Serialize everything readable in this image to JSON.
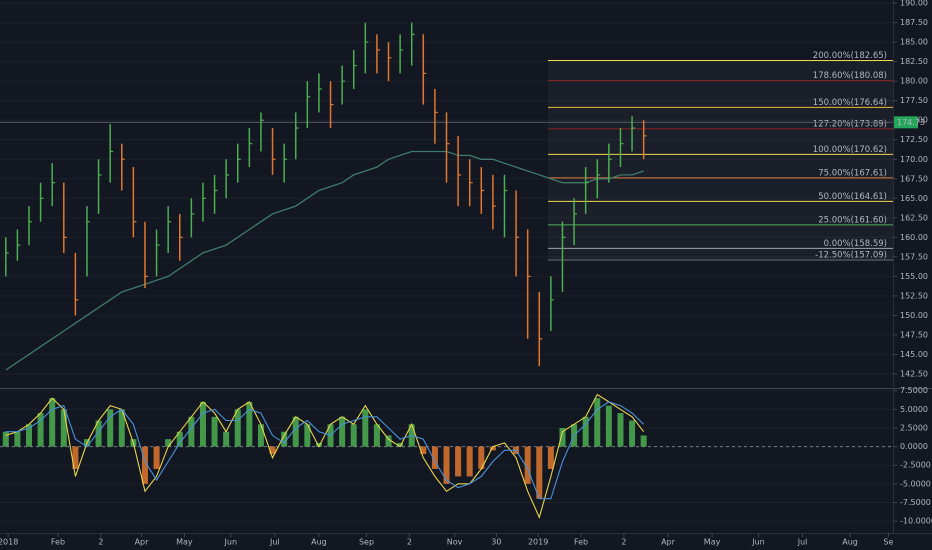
{
  "chart_data": [
    {
      "type": "ohlc",
      "x": [
        0,
        1,
        2,
        3,
        4,
        5,
        6,
        7,
        8,
        9,
        10,
        11,
        12,
        13,
        14,
        15,
        16,
        17,
        18,
        19,
        20,
        21,
        22,
        23,
        24,
        25,
        26,
        27,
        28,
        29,
        30,
        31,
        32,
        33,
        34,
        35,
        36,
        37,
        38,
        39,
        40,
        41,
        42,
        43,
        44,
        45,
        46,
        47,
        48,
        49,
        50,
        51,
        52,
        53,
        54,
        55
      ],
      "xlim": [
        0,
        77
      ],
      "ylim": [
        140.7,
        190.4
      ],
      "high": [
        160,
        161,
        164,
        167,
        169.5,
        167,
        158,
        164,
        170,
        174.5,
        172,
        169,
        162,
        161,
        164,
        163,
        165,
        167,
        168,
        170,
        172,
        174,
        176,
        174,
        172,
        176,
        180,
        181,
        180,
        182,
        184,
        187.5,
        186,
        185,
        186,
        187.5,
        186,
        179,
        176,
        173,
        170,
        169,
        168,
        168,
        166,
        161,
        153,
        155,
        162,
        165,
        169,
        170,
        172,
        174,
        175.5,
        175
      ],
      "low": [
        155,
        157,
        159,
        162,
        164,
        158,
        150,
        155,
        163,
        167,
        166,
        160,
        153.5,
        155,
        158,
        157,
        160,
        162,
        163,
        165,
        167,
        169,
        171,
        168,
        167,
        170,
        174,
        176,
        174,
        177,
        179,
        181,
        181,
        180,
        181,
        182,
        177,
        172,
        167,
        164,
        164,
        163,
        161,
        160,
        155,
        147,
        143.5,
        148,
        153,
        159,
        163,
        165,
        167,
        169,
        171,
        170
      ],
      "close": [
        158,
        159,
        162,
        165,
        167,
        160,
        152,
        162,
        168,
        171,
        170,
        162,
        155,
        159,
        162,
        160,
        163,
        165,
        166,
        168,
        170,
        172,
        175,
        170,
        170,
        174,
        178,
        179,
        177,
        180,
        182,
        185,
        184,
        183,
        184,
        186,
        181,
        176,
        172,
        168,
        167,
        166,
        164,
        166,
        160,
        155,
        147,
        152,
        160,
        163,
        167,
        168,
        170,
        172,
        174,
        173
      ],
      "up_color": "#4caf50",
      "down_color": "#e0782f",
      "ma": {
        "color": "#3f7a68",
        "values": [
          143,
          144,
          145,
          146,
          147,
          148,
          149,
          150,
          151,
          152,
          153,
          153.5,
          154,
          154.5,
          155,
          156,
          157,
          158,
          158.5,
          159,
          160,
          161,
          162,
          163,
          163.5,
          164,
          165,
          166,
          166.5,
          167,
          168,
          168.5,
          169,
          170,
          170.5,
          171,
          171,
          171,
          171,
          170.5,
          170.5,
          170,
          170,
          169.5,
          169,
          168.5,
          168,
          167.5,
          167,
          167,
          167,
          167.5,
          167.5,
          168,
          168,
          168.5
        ]
      },
      "last_price": 174.73,
      "last_color": "#26a65b",
      "yticks": [
        {
          "value": 190,
          "label": "190.00"
        },
        {
          "value": 187.5,
          "label": "187.50"
        },
        {
          "value": 185,
          "label": "185.00"
        },
        {
          "value": 182.5,
          "label": "182.50"
        },
        {
          "value": 180,
          "label": "180.00"
        },
        {
          "value": 177.5,
          "label": "177.50"
        },
        {
          "value": 175,
          "label": "175.00"
        },
        {
          "value": 172.5,
          "label": "172.50"
        },
        {
          "value": 170,
          "label": "170.00"
        },
        {
          "value": 167.5,
          "label": "167.50"
        },
        {
          "value": 165,
          "label": "165.00"
        },
        {
          "value": 162.5,
          "label": "162.50"
        },
        {
          "value": 160,
          "label": "160.00"
        },
        {
          "value": 157.5,
          "label": "157.50"
        },
        {
          "value": 155,
          "label": "155.00"
        },
        {
          "value": 152.5,
          "label": "152.50"
        },
        {
          "value": 150,
          "label": "150.00"
        },
        {
          "value": 147.5,
          "label": "147.50"
        },
        {
          "value": 145,
          "label": "145.00"
        },
        {
          "value": 142.5,
          "label": "142.50"
        }
      ],
      "fib_levels": [
        {
          "value": 182.65,
          "label": "200.00%(182.65)",
          "color": "#f2d84b"
        },
        {
          "value": 180.08,
          "label": "178.60%(180.08)",
          "color": "#8e2424"
        },
        {
          "value": 176.64,
          "label": "150.00%(176.64)",
          "color": "#e8bb3e"
        },
        {
          "value": 173.89,
          "label": "127.20%(173.89)",
          "color": "#8e2424"
        },
        {
          "value": 170.62,
          "label": "100.00%(170.62)",
          "color": "#f2d84b"
        },
        {
          "value": 167.61,
          "label": "75.00%(167.61)",
          "color": "#e07b39"
        },
        {
          "value": 164.61,
          "label": "50.00%(164.61)",
          "color": "#f2d84b"
        },
        {
          "value": 161.6,
          "label": "25.00%(161.60)",
          "color": "#4caf50"
        },
        {
          "value": 158.59,
          "label": "0.00%(158.59)",
          "color": "#a0a4ab"
        },
        {
          "value": 157.09,
          "label": "-12.50%(157.09)",
          "color": "#6b6f7a"
        }
      ]
    },
    {
      "type": "macd",
      "x": [
        0,
        1,
        2,
        3,
        4,
        5,
        6,
        7,
        8,
        9,
        10,
        11,
        12,
        13,
        14,
        15,
        16,
        17,
        18,
        19,
        20,
        21,
        22,
        23,
        24,
        25,
        26,
        27,
        28,
        29,
        30,
        31,
        32,
        33,
        34,
        35,
        36,
        37,
        38,
        39,
        40,
        41,
        42,
        43,
        44,
        45,
        46,
        47,
        48,
        49,
        50,
        51,
        52,
        53,
        54,
        55
      ],
      "xlim": [
        0,
        77
      ],
      "ylim": [
        -11.6,
        7.6
      ],
      "histogram": {
        "pos_color": "#4caf50",
        "neg_color": "#e0782f",
        "values": [
          2,
          2,
          3,
          4.5,
          6.5,
          5,
          -3,
          1,
          3.5,
          5,
          5,
          1,
          -5,
          -3,
          1,
          2,
          4,
          6,
          4,
          2,
          5,
          6,
          3,
          -1,
          2,
          4,
          3,
          0.5,
          3,
          4,
          3,
          5,
          3,
          1.5,
          0.5,
          3,
          -1,
          -3,
          -5,
          -4,
          -4,
          -3,
          -0.5,
          0,
          -1,
          -5,
          -7,
          -3,
          2.5,
          3,
          4,
          6.5,
          5.5,
          4.5,
          3.5,
          1.5
        ]
      },
      "series": [
        {
          "color": "#e8d54a",
          "values": [
            1.5,
            2,
            3,
            4.5,
            6.5,
            5,
            -4,
            0.5,
            3.5,
            5.5,
            5,
            0.5,
            -6,
            -4,
            0,
            2,
            4,
            6,
            4.5,
            2,
            5,
            6,
            3,
            -1.5,
            1.5,
            4,
            3,
            0,
            3,
            4,
            3,
            5.5,
            3,
            1,
            0,
            3,
            -1.5,
            -4,
            -6,
            -5,
            -5,
            -3,
            0,
            0.5,
            -1.5,
            -6,
            -9.5,
            -4,
            2,
            3,
            4,
            7,
            6,
            5,
            4,
            2
          ]
        },
        {
          "color": "#4a90d9",
          "values": [
            2,
            2,
            2.5,
            3.5,
            5,
            5.5,
            1,
            0,
            2,
            4,
            5,
            3,
            -2,
            -4.5,
            -2,
            0.5,
            2.5,
            4.5,
            5,
            3.5,
            3.5,
            5,
            4.5,
            1.5,
            0.5,
            2.5,
            3.5,
            2,
            1.5,
            3,
            3.5,
            4,
            4,
            2.5,
            1,
            1.5,
            1,
            -2,
            -4.5,
            -5.5,
            -5,
            -4,
            -2,
            -0.5,
            -0.5,
            -3,
            -7,
            -7,
            -2,
            1.5,
            3,
            5,
            6,
            5.5,
            4.5,
            3
          ]
        }
      ],
      "yticks": [
        {
          "value": 7.5,
          "label": "7.5000"
        },
        {
          "value": 5,
          "label": "5.0000"
        },
        {
          "value": 2.5,
          "label": "2.5000"
        },
        {
          "value": 0,
          "label": "0.0000"
        },
        {
          "value": -2.5,
          "label": "-2.5000"
        },
        {
          "value": -5,
          "label": "-5.0000"
        },
        {
          "value": -7.5,
          "label": "-7.5000"
        },
        {
          "value": -10,
          "label": "-10.0000"
        }
      ],
      "xticks": [
        {
          "value": 0.7,
          "label": "2018"
        },
        {
          "value": 5,
          "label": "Feb"
        },
        {
          "value": 8.7,
          "label": "2"
        },
        {
          "value": 12.2,
          "label": "Apr"
        },
        {
          "value": 15.9,
          "label": "May"
        },
        {
          "value": 19.9,
          "label": "Jun"
        },
        {
          "value": 23.7,
          "label": "Jul"
        },
        {
          "value": 27.5,
          "label": "Aug"
        },
        {
          "value": 31.6,
          "label": "Sep"
        },
        {
          "value": 35.3,
          "label": "2"
        },
        {
          "value": 39.2,
          "label": "Nov"
        },
        {
          "value": 42.8,
          "label": "30"
        },
        {
          "value": 46.4,
          "label": "2019"
        },
        {
          "value": 50.1,
          "label": "Feb"
        },
        {
          "value": 53.8,
          "label": "2"
        },
        {
          "value": 57.6,
          "label": "Apr"
        },
        {
          "value": 61.4,
          "label": "May"
        },
        {
          "value": 65.4,
          "label": "Jun"
        },
        {
          "value": 69.2,
          "label": "Jul"
        },
        {
          "value": 73.3,
          "label": "Aug"
        },
        {
          "value": 76.6,
          "label": "Se"
        }
      ]
    }
  ]
}
